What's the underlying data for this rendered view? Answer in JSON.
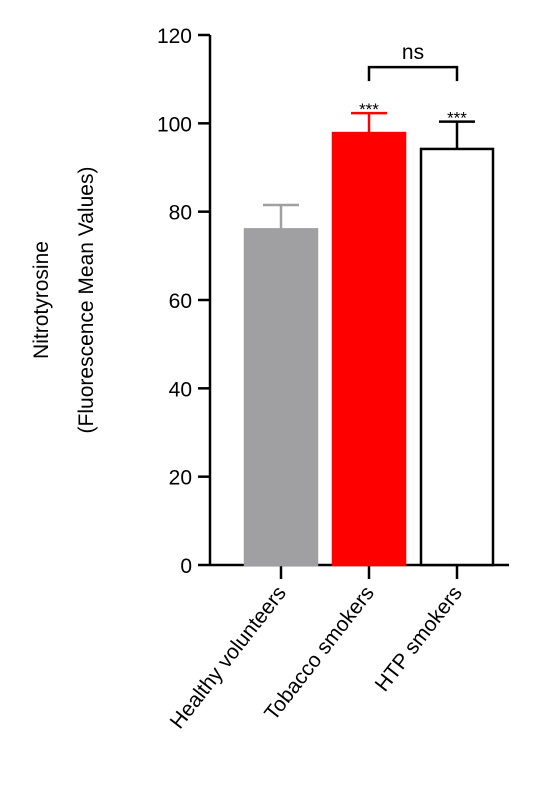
{
  "chart_data": {
    "type": "bar",
    "ylabel": [
      "Nitrotyrosine",
      "(Fluorescence Mean Values)"
    ],
    "categories": [
      "Healthy volunteers",
      "Tobacco smokers",
      "HTP smokers"
    ],
    "values": [
      76,
      97.8,
      94.2
    ],
    "errors": [
      5.5,
      4.5,
      6.2
    ],
    "colors": [
      "#a0a0a3",
      "#ff0000",
      "#ffffff"
    ],
    "edgecolors": [
      "#a0a0a3",
      "#ff0000",
      "#000000"
    ],
    "ylim": [
      0,
      120
    ],
    "yticks": [
      0,
      20,
      40,
      60,
      80,
      100,
      120
    ],
    "annotations": [
      {
        "text": "***",
        "categories": [
          1
        ]
      },
      {
        "text": "***",
        "categories": [
          2
        ]
      },
      {
        "text": "ns",
        "categories": [
          1,
          2
        ]
      }
    ]
  }
}
